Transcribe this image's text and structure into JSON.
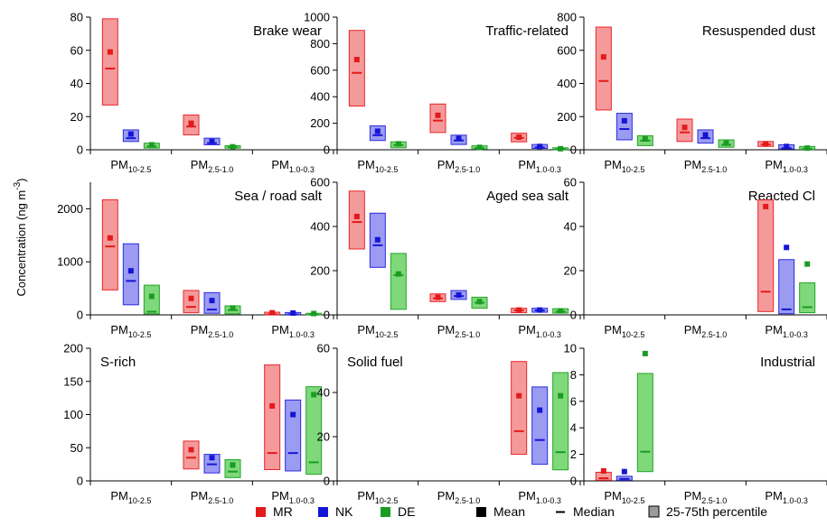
{
  "figure": {
    "ylabel": "Concentration (ng m",
    "ylabel_sup": "-3",
    "ylabel_close": ")"
  },
  "colors": {
    "MR": {
      "fill": "#f59a9a",
      "stroke": "#e8262b",
      "mark": "#e31a1c"
    },
    "NK": {
      "fill": "#9b9bf2",
      "stroke": "#2a2ae0",
      "mark": "#1515d6"
    },
    "DE": {
      "fill": "#7fd87a",
      "stroke": "#22a52a",
      "mark": "#1a9c22"
    }
  },
  "categories": [
    {
      "main": "PM",
      "sub": "10-2.5"
    },
    {
      "main": "PM",
      "sub": "2.5-1.0"
    },
    {
      "main": "PM",
      "sub": "1.0-0.3"
    }
  ],
  "series_names": [
    "MR",
    "NK",
    "DE"
  ],
  "legend": {
    "items": [
      {
        "label": "MR",
        "kind": "color",
        "color": "MR"
      },
      {
        "label": "NK",
        "kind": "color",
        "color": "NK"
      },
      {
        "label": "DE",
        "kind": "color",
        "color": "DE"
      },
      {
        "label": "Mean",
        "kind": "mean"
      },
      {
        "label": "Median",
        "kind": "median"
      },
      {
        "label": "25-75th percentile",
        "kind": "box"
      }
    ]
  },
  "chart_data": [
    {
      "type": "box",
      "title": "Brake wear",
      "title_pos": "top-right",
      "ylim": [
        0,
        80
      ],
      "yticks": [
        0,
        20,
        40,
        60,
        80
      ],
      "boxes": [
        {
          "cat": 0,
          "series": "MR",
          "q1": 27,
          "q3": 79,
          "median": 49,
          "mean": 59
        },
        {
          "cat": 0,
          "series": "NK",
          "q1": 5,
          "q3": 12,
          "median": 7,
          "mean": 9.5
        },
        {
          "cat": 0,
          "series": "DE",
          "q1": 1,
          "q3": 4,
          "median": 2,
          "mean": 3
        },
        {
          "cat": 1,
          "series": "MR",
          "q1": 9,
          "q3": 21,
          "median": 14,
          "mean": 16
        },
        {
          "cat": 1,
          "series": "NK",
          "q1": 3,
          "q3": 7,
          "median": 4,
          "mean": 5
        },
        {
          "cat": 1,
          "series": "DE",
          "q1": 1,
          "q3": 2.5,
          "median": 1.5,
          "mean": 1.8
        }
      ]
    },
    {
      "type": "box",
      "title": "Traffic-related",
      "title_pos": "top-right",
      "ylim": [
        0,
        1000
      ],
      "yticks": [
        0,
        200,
        400,
        600,
        800,
        1000
      ],
      "boxes": [
        {
          "cat": 0,
          "series": "MR",
          "q1": 330,
          "q3": 900,
          "median": 580,
          "mean": 680
        },
        {
          "cat": 0,
          "series": "NK",
          "q1": 70,
          "q3": 180,
          "median": 110,
          "mean": 140
        },
        {
          "cat": 0,
          "series": "DE",
          "q1": 15,
          "q3": 60,
          "median": 35,
          "mean": 45
        },
        {
          "cat": 1,
          "series": "MR",
          "q1": 130,
          "q3": 345,
          "median": 220,
          "mean": 260
        },
        {
          "cat": 1,
          "series": "NK",
          "q1": 40,
          "q3": 110,
          "median": 70,
          "mean": 85
        },
        {
          "cat": 1,
          "series": "DE",
          "q1": 5,
          "q3": 30,
          "median": 12,
          "mean": 18
        },
        {
          "cat": 2,
          "series": "MR",
          "q1": 60,
          "q3": 125,
          "median": 90,
          "mean": 95
        },
        {
          "cat": 2,
          "series": "NK",
          "q1": 10,
          "q3": 40,
          "median": 18,
          "mean": 25
        },
        {
          "cat": 2,
          "series": "DE",
          "q1": 2,
          "q3": 15,
          "median": 5,
          "mean": 8
        }
      ]
    },
    {
      "type": "box",
      "title": "Resuspended dust",
      "title_pos": "top-right",
      "ylim": [
        0,
        800
      ],
      "yticks": [
        0,
        200,
        400,
        600,
        800
      ],
      "boxes": [
        {
          "cat": 0,
          "series": "MR",
          "q1": 240,
          "q3": 740,
          "median": 415,
          "mean": 560
        },
        {
          "cat": 0,
          "series": "NK",
          "q1": 60,
          "q3": 220,
          "median": 125,
          "mean": 175
        },
        {
          "cat": 0,
          "series": "DE",
          "q1": 25,
          "q3": 85,
          "median": 55,
          "mean": 65
        },
        {
          "cat": 1,
          "series": "MR",
          "q1": 50,
          "q3": 185,
          "median": 105,
          "mean": 135
        },
        {
          "cat": 1,
          "series": "NK",
          "q1": 40,
          "q3": 120,
          "median": 70,
          "mean": 90
        },
        {
          "cat": 1,
          "series": "DE",
          "q1": 15,
          "q3": 60,
          "median": 30,
          "mean": 40
        },
        {
          "cat": 2,
          "series": "MR",
          "q1": 20,
          "q3": 50,
          "median": 32,
          "mean": 36
        },
        {
          "cat": 2,
          "series": "NK",
          "q1": 5,
          "q3": 30,
          "median": 10,
          "mean": 20
        },
        {
          "cat": 2,
          "series": "DE",
          "q1": 2,
          "q3": 20,
          "median": 6,
          "mean": 10
        }
      ]
    },
    {
      "type": "box",
      "title": "Sea / road salt",
      "title_pos": "top-right",
      "ylim": [
        0,
        2500
      ],
      "yticks": [
        0,
        1000,
        2000
      ],
      "boxes": [
        {
          "cat": 0,
          "series": "MR",
          "q1": 470,
          "q3": 2170,
          "median": 1290,
          "mean": 1450
        },
        {
          "cat": 0,
          "series": "NK",
          "q1": 190,
          "q3": 1340,
          "median": 640,
          "mean": 830
        },
        {
          "cat": 0,
          "series": "DE",
          "q1": 20,
          "q3": 560,
          "median": 60,
          "mean": 350
        },
        {
          "cat": 1,
          "series": "MR",
          "q1": 40,
          "q3": 460,
          "median": 150,
          "mean": 310
        },
        {
          "cat": 1,
          "series": "NK",
          "q1": 30,
          "q3": 420,
          "median": 100,
          "mean": 270
        },
        {
          "cat": 1,
          "series": "DE",
          "q1": 20,
          "q3": 170,
          "median": 90,
          "mean": 130
        },
        {
          "cat": 2,
          "series": "MR",
          "q1": 5,
          "q3": 50,
          "median": 10,
          "mean": 40
        },
        {
          "cat": 2,
          "series": "NK",
          "q1": 5,
          "q3": 45,
          "median": 8,
          "mean": 35
        },
        {
          "cat": 2,
          "series": "DE",
          "q1": 3,
          "q3": 30,
          "median": 5,
          "mean": 25
        }
      ]
    },
    {
      "type": "box",
      "title": "Aged sea salt",
      "title_pos": "top-right",
      "ylim": [
        0,
        600
      ],
      "yticks": [
        0,
        200,
        400,
        600
      ],
      "boxes": [
        {
          "cat": 0,
          "series": "MR",
          "q1": 298,
          "q3": 560,
          "median": 420,
          "mean": 445
        },
        {
          "cat": 0,
          "series": "NK",
          "q1": 215,
          "q3": 460,
          "median": 315,
          "mean": 340
        },
        {
          "cat": 0,
          "series": "DE",
          "q1": 25,
          "q3": 278,
          "median": 180,
          "mean": 185
        },
        {
          "cat": 1,
          "series": "MR",
          "q1": 60,
          "q3": 95,
          "median": 75,
          "mean": 80
        },
        {
          "cat": 1,
          "series": "NK",
          "q1": 70,
          "q3": 110,
          "median": 85,
          "mean": 90
        },
        {
          "cat": 1,
          "series": "DE",
          "q1": 30,
          "q3": 80,
          "median": 55,
          "mean": 60
        },
        {
          "cat": 2,
          "series": "MR",
          "q1": 10,
          "q3": 30,
          "median": 20,
          "mean": 22
        },
        {
          "cat": 2,
          "series": "NK",
          "q1": 12,
          "q3": 30,
          "median": 20,
          "mean": 22
        },
        {
          "cat": 2,
          "series": "DE",
          "q1": 8,
          "q3": 28,
          "median": 15,
          "mean": 18
        }
      ]
    },
    {
      "type": "box",
      "title": "Reacted Cl",
      "title_pos": "top-right",
      "ylim": [
        0,
        60
      ],
      "yticks": [
        0,
        20,
        40,
        60
      ],
      "boxes": [
        {
          "cat": 2,
          "series": "MR",
          "q1": 1.5,
          "q3": 52,
          "median": 10.5,
          "mean": 49
        },
        {
          "cat": 2,
          "series": "NK",
          "q1": 0.5,
          "q3": 25,
          "median": 2.5,
          "mean": 30.5
        },
        {
          "cat": 2,
          "series": "DE",
          "q1": 1,
          "q3": 14.5,
          "median": 3.5,
          "mean": 23
        }
      ]
    },
    {
      "type": "box",
      "title": "S-rich",
      "title_pos": "top-left",
      "ylim": [
        0,
        200
      ],
      "yticks": [
        0,
        50,
        100,
        150,
        200
      ],
      "boxes": [
        {
          "cat": 1,
          "series": "MR",
          "q1": 18,
          "q3": 60,
          "median": 35,
          "mean": 47
        },
        {
          "cat": 1,
          "series": "NK",
          "q1": 12,
          "q3": 40,
          "median": 25,
          "mean": 35
        },
        {
          "cat": 1,
          "series": "DE",
          "q1": 5,
          "q3": 32,
          "median": 14,
          "mean": 24
        },
        {
          "cat": 2,
          "series": "MR",
          "q1": 17,
          "q3": 175,
          "median": 42,
          "mean": 113
        },
        {
          "cat": 2,
          "series": "NK",
          "q1": 15,
          "q3": 122,
          "median": 42,
          "mean": 100
        },
        {
          "cat": 2,
          "series": "DE",
          "q1": 10,
          "q3": 142,
          "median": 28,
          "mean": 130
        }
      ]
    },
    {
      "type": "box",
      "title": "Solid fuel",
      "title_pos": "top-left",
      "ylim": [
        0,
        60
      ],
      "yticks": [
        0,
        20,
        40,
        60
      ],
      "boxes": [
        {
          "cat": 2,
          "series": "MR",
          "q1": 12,
          "q3": 54,
          "median": 22.5,
          "mean": 38.5
        },
        {
          "cat": 2,
          "series": "NK",
          "q1": 7.5,
          "q3": 42.5,
          "median": 18.5,
          "mean": 32
        },
        {
          "cat": 2,
          "series": "DE",
          "q1": 5,
          "q3": 49,
          "median": 13,
          "mean": 38.5
        }
      ]
    },
    {
      "type": "box",
      "title": "Industrial",
      "title_pos": "top-right",
      "ylim": [
        0,
        10
      ],
      "yticks": [
        0,
        2,
        4,
        6,
        8,
        10
      ],
      "boxes": [
        {
          "cat": 0,
          "series": "MR",
          "q1": 0.05,
          "q3": 0.65,
          "median": 0.2,
          "mean": 0.75
        },
        {
          "cat": 0,
          "series": "NK",
          "q1": 0.05,
          "q3": 0.35,
          "median": 0.15,
          "mean": 0.7
        },
        {
          "cat": 0,
          "series": "DE",
          "q1": 0.7,
          "q3": 8.1,
          "median": 2.2,
          "mean": 9.6
        }
      ]
    }
  ]
}
